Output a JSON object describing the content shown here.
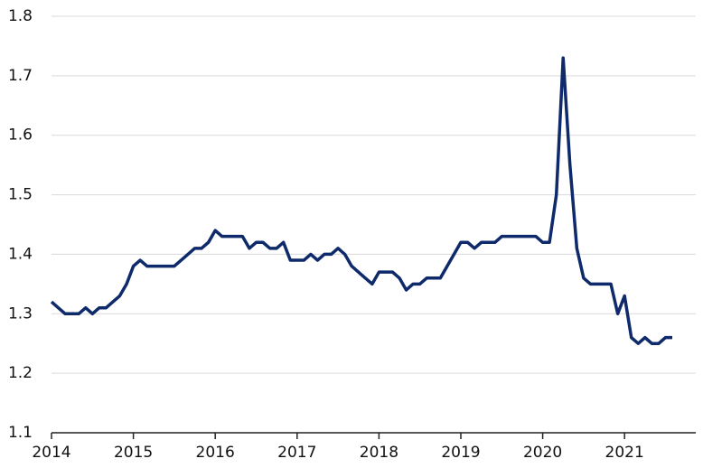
{
  "chart_data": {
    "type": "line",
    "x": [
      2014,
      2014.083,
      2014.167,
      2014.25,
      2014.333,
      2014.417,
      2014.5,
      2014.583,
      2014.667,
      2014.75,
      2014.833,
      2014.917,
      2015,
      2015.083,
      2015.167,
      2015.25,
      2015.333,
      2015.417,
      2015.5,
      2015.583,
      2015.667,
      2015.75,
      2015.833,
      2015.917,
      2016,
      2016.083,
      2016.167,
      2016.25,
      2016.333,
      2016.417,
      2016.5,
      2016.583,
      2016.667,
      2016.75,
      2016.833,
      2016.917,
      2017,
      2017.083,
      2017.167,
      2017.25,
      2017.333,
      2017.417,
      2017.5,
      2017.583,
      2017.667,
      2017.75,
      2017.833,
      2017.917,
      2018,
      2018.083,
      2018.167,
      2018.25,
      2018.333,
      2018.417,
      2018.5,
      2018.583,
      2018.667,
      2018.75,
      2018.833,
      2018.917,
      2019,
      2019.083,
      2019.167,
      2019.25,
      2019.333,
      2019.417,
      2019.5,
      2019.583,
      2019.667,
      2019.75,
      2019.833,
      2019.917,
      2020,
      2020.083,
      2020.167,
      2020.25,
      2020.333,
      2020.417,
      2020.5,
      2020.583,
      2020.667,
      2020.75,
      2020.833,
      2020.917,
      2021,
      2021.083,
      2021.167,
      2021.25,
      2021.333,
      2021.417,
      2021.5,
      2021.583
    ],
    "series": [
      {
        "color": "#0e2a6b",
        "values": [
          1.32,
          1.31,
          1.3,
          1.3,
          1.3,
          1.31,
          1.3,
          1.31,
          1.31,
          1.32,
          1.33,
          1.35,
          1.38,
          1.39,
          1.38,
          1.38,
          1.38,
          1.38,
          1.38,
          1.39,
          1.4,
          1.41,
          1.41,
          1.42,
          1.44,
          1.43,
          1.43,
          1.43,
          1.43,
          1.41,
          1.42,
          1.42,
          1.41,
          1.41,
          1.42,
          1.39,
          1.39,
          1.39,
          1.4,
          1.39,
          1.4,
          1.4,
          1.41,
          1.4,
          1.38,
          1.37,
          1.36,
          1.35,
          1.37,
          1.37,
          1.37,
          1.36,
          1.34,
          1.35,
          1.35,
          1.36,
          1.36,
          1.36,
          1.38,
          1.4,
          1.42,
          1.42,
          1.41,
          1.42,
          1.42,
          1.42,
          1.43,
          1.43,
          1.43,
          1.43,
          1.43,
          1.43,
          1.42,
          1.42,
          1.5,
          1.73,
          1.55,
          1.41,
          1.36,
          1.35,
          1.35,
          1.35,
          1.35,
          1.3,
          1.33,
          1.26,
          1.25,
          1.26,
          1.25,
          1.25,
          1.26,
          1.26
        ]
      }
    ],
    "xlim": [
      2014,
      2021.87
    ],
    "xticks": [
      2014,
      2015,
      2016,
      2017,
      2018,
      2019,
      2020,
      2021
    ],
    "ylim": [
      1.1,
      1.8
    ],
    "yticks": [
      1.1,
      1.2,
      1.3,
      1.4,
      1.5,
      1.6,
      1.7,
      1.8
    ],
    "grid": true
  }
}
